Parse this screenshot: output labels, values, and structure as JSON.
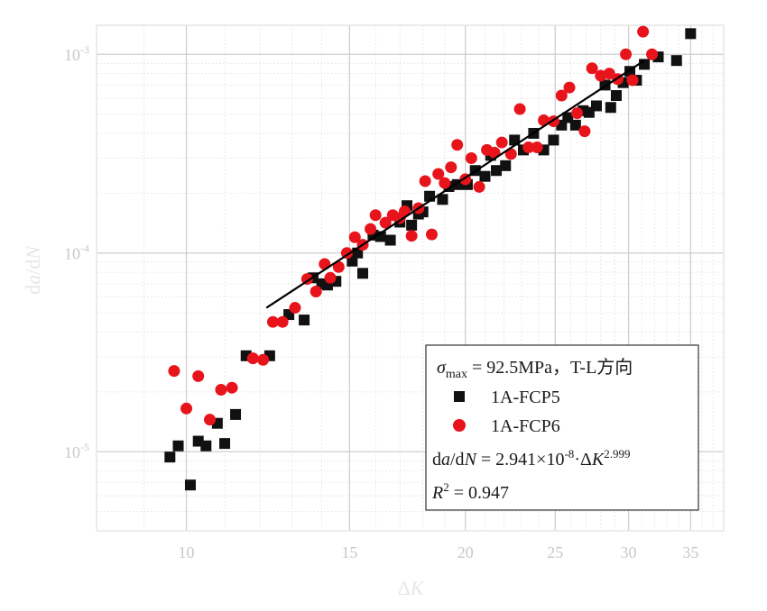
{
  "chart_data": {
    "type": "scatter",
    "x_scale": "log",
    "y_scale": "log",
    "xlim": [
      8,
      38
    ],
    "ylim": [
      4e-06,
      0.0014
    ],
    "x_ticks": [
      10,
      15,
      20,
      25,
      30,
      35
    ],
    "x_tick_labels": [
      "10",
      "15",
      "20",
      "25",
      "30",
      "35"
    ],
    "y_ticks": [
      1e-05,
      0.0001,
      0.001
    ],
    "y_tick_labels": [
      {
        "base": "10",
        "exp": "-5"
      },
      {
        "base": "10",
        "exp": "-4"
      },
      {
        "base": "10",
        "exp": "-3"
      }
    ],
    "grid": true,
    "xlabel": {
      "prefix": "Δ",
      "italic": "K"
    },
    "ylabel": {
      "parts": [
        "d",
        "a",
        "/d",
        "N"
      ]
    },
    "series": [
      {
        "name": "1A-FCP5",
        "marker": "square",
        "color": "#111111",
        "x": [
          9.6,
          9.8,
          10.1,
          10.3,
          10.5,
          10.8,
          11.0,
          11.3,
          11.6,
          12.3,
          12.9,
          13.4,
          13.7,
          14.0,
          14.2,
          14.5,
          15.1,
          15.3,
          15.5,
          15.9,
          16.2,
          16.6,
          17.0,
          17.3,
          17.5,
          17.8,
          18.0,
          18.3,
          18.9,
          19.2,
          19.6,
          20.1,
          20.5,
          21.0,
          21.3,
          21.6,
          22.1,
          22.6,
          23.1,
          23.7,
          24.3,
          24.9,
          25.4,
          25.8,
          26.3,
          26.8,
          27.2,
          27.7,
          28.3,
          28.7,
          29.1,
          29.6,
          30.1,
          30.6,
          31.2,
          32.3,
          33.8,
          35.0
        ],
        "y": [
          9.4e-06,
          1.07e-05,
          6.8e-06,
          1.13e-05,
          1.07e-05,
          1.39e-05,
          1.1e-05,
          1.54e-05,
          3.04e-05,
          3.04e-05,
          4.9e-05,
          4.6e-05,
          7.5e-05,
          7e-05,
          6.9e-05,
          7.2e-05,
          9.1e-05,
          0.0001,
          7.9e-05,
          0.000123,
          0.000121,
          0.000116,
          0.000143,
          0.000173,
          0.000138,
          0.000157,
          0.000161,
          0.000193,
          0.000186,
          0.000216,
          0.000221,
          0.000221,
          0.00026,
          0.000243,
          0.00031,
          0.00026,
          0.000275,
          0.00037,
          0.00033,
          0.0004,
          0.00033,
          0.00037,
          0.00044,
          0.00048,
          0.00044,
          0.00052,
          0.00051,
          0.00055,
          0.0007,
          0.00054,
          0.00062,
          0.00072,
          0.00082,
          0.00074,
          0.00089,
          0.00097,
          0.00093,
          0.00127
        ]
      },
      {
        "name": "1A-FCP6",
        "marker": "circle",
        "color": "#e8141c",
        "x": [
          9.7,
          10.0,
          10.3,
          10.6,
          10.9,
          11.2,
          11.8,
          12.1,
          12.4,
          12.7,
          13.1,
          13.5,
          13.8,
          14.1,
          14.3,
          14.6,
          14.9,
          15.2,
          15.5,
          15.8,
          16.0,
          16.4,
          16.7,
          17.0,
          17.2,
          17.5,
          17.8,
          18.1,
          18.4,
          18.7,
          19.0,
          19.3,
          19.6,
          20.0,
          20.3,
          20.7,
          21.1,
          21.5,
          21.9,
          22.4,
          22.9,
          23.4,
          23.9,
          24.3,
          24.9,
          25.4,
          25.9,
          26.4,
          26.9,
          27.4,
          28.0,
          28.6,
          29.2,
          29.8,
          30.3,
          31.1,
          31.8
        ],
        "y": [
          2.55e-05,
          1.65e-05,
          2.4e-05,
          1.45e-05,
          2.05e-05,
          2.1e-05,
          2.95e-05,
          2.9e-05,
          4.5e-05,
          4.5e-05,
          5.3e-05,
          7.4e-05,
          6.4e-05,
          8.8e-05,
          7.5e-05,
          8.5e-05,
          0.0001,
          0.00012,
          0.00011,
          0.000132,
          0.000155,
          0.000142,
          0.000155,
          0.00015,
          0.000162,
          0.000122,
          0.000168,
          0.00023,
          0.000124,
          0.00025,
          0.000225,
          0.00027,
          0.00035,
          0.000235,
          0.0003,
          0.000215,
          0.00033,
          0.00032,
          0.00036,
          0.000315,
          0.00053,
          0.00034,
          0.00034,
          0.000465,
          0.00046,
          0.00062,
          0.00068,
          0.000505,
          0.00041,
          0.00085,
          0.00078,
          0.0008,
          0.00075,
          0.001,
          0.00074,
          0.0013,
          0.001
        ]
      }
    ],
    "fit_line": {
      "x": [
        12.2,
        31.2
      ],
      "y": [
        5.3e-05,
        0.00093
      ],
      "color": "#000000"
    },
    "legend": {
      "placement": "bottom-right",
      "title": {
        "sym": "σ",
        "sub": "max",
        "rest": " = 92.5MPa，T-L方向"
      },
      "equation": {
        "parts": [
          "d",
          "a",
          "/d",
          "N",
          " = 2.941×10",
          "-8",
          "·Δ",
          "K",
          "2.999"
        ]
      },
      "r2": {
        "sym": "R",
        "sup": "2",
        "rest": " = 0.947"
      }
    }
  }
}
